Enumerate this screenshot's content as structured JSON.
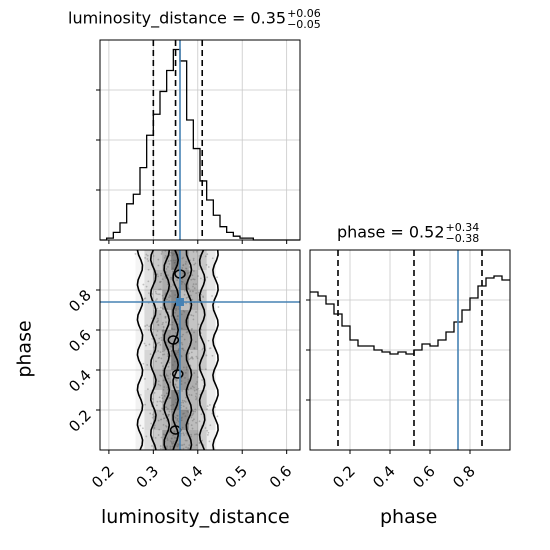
{
  "chart_data": [
    {
      "panel": "luminosity_distance marginal",
      "type": "histogram",
      "title": {
        "param": "luminosity_distance",
        "median": "0.35",
        "plus": "+0.06",
        "minus": "−0.05"
      },
      "xlim": [
        0.18,
        0.63
      ],
      "quantiles": [
        0.3,
        0.35,
        0.41
      ],
      "truth": 0.36,
      "bins_edges": [
        0.18,
        0.195,
        0.21,
        0.225,
        0.24,
        0.255,
        0.27,
        0.285,
        0.3,
        0.315,
        0.33,
        0.345,
        0.36,
        0.375,
        0.39,
        0.405,
        0.42,
        0.435,
        0.45,
        0.465,
        0.48,
        0.495,
        0.51,
        0.525,
        0.54,
        0.555,
        0.57,
        0.585,
        0.6,
        0.615,
        0.63
      ],
      "counts": [
        0,
        1,
        4,
        9,
        19,
        24,
        38,
        55,
        66,
        78,
        89,
        100,
        94,
        63,
        48,
        31,
        21,
        13,
        7,
        4,
        2,
        1,
        1,
        0,
        0,
        0,
        0,
        0,
        0,
        0
      ],
      "grid": true
    },
    {
      "panel": "phase marginal",
      "type": "histogram",
      "title": {
        "param": "phase",
        "median": "0.52",
        "plus": "+0.34",
        "minus": "−0.38"
      },
      "xlim": [
        0.0,
        1.0
      ],
      "quantiles": [
        0.14,
        0.52,
        0.86
      ],
      "truth": 0.74,
      "bins_edges": [
        0.0,
        0.04,
        0.08,
        0.12,
        0.16,
        0.2,
        0.24,
        0.28,
        0.32,
        0.36,
        0.4,
        0.44,
        0.48,
        0.52,
        0.56,
        0.6,
        0.64,
        0.68,
        0.72,
        0.76,
        0.8,
        0.84,
        0.88,
        0.92,
        0.96,
        1.0
      ],
      "counts": [
        0.79,
        0.77,
        0.73,
        0.68,
        0.62,
        0.55,
        0.52,
        0.52,
        0.5,
        0.49,
        0.48,
        0.49,
        0.48,
        0.5,
        0.53,
        0.52,
        0.55,
        0.59,
        0.64,
        0.7,
        0.76,
        0.82,
        0.86,
        0.87,
        0.85
      ],
      "grid": true
    },
    {
      "panel": "joint luminosity_distance vs phase",
      "type": "scatter",
      "xlim": [
        0.18,
        0.63
      ],
      "ylim": [
        0.0,
        1.0
      ],
      "xlabel": "luminosity_distance",
      "ylabel": "phase",
      "x_ticks": [
        "0.2",
        "0.3",
        "0.4",
        "0.5",
        "0.6"
      ],
      "y_ticks": [
        "0.2",
        "0.4",
        "0.6",
        "0.8"
      ],
      "truth": [
        0.36,
        0.74
      ],
      "contour_x_positions": [
        0.27,
        0.3,
        0.33,
        0.35,
        0.38,
        0.41,
        0.44
      ],
      "density_columns": [
        0.27,
        0.29,
        0.31,
        0.33,
        0.35,
        0.37,
        0.39,
        0.41,
        0.43
      ],
      "grid": true
    },
    {
      "panel": "phase bottom axis",
      "type": "axis",
      "xlabel": "phase",
      "x_ticks": [
        "0.2",
        "0.4",
        "0.6",
        "0.8"
      ]
    }
  ],
  "colors": {
    "hist": "#000000",
    "truth": "#4682b4",
    "grid": "#c8c8c8",
    "density": "#4d4d4d"
  }
}
